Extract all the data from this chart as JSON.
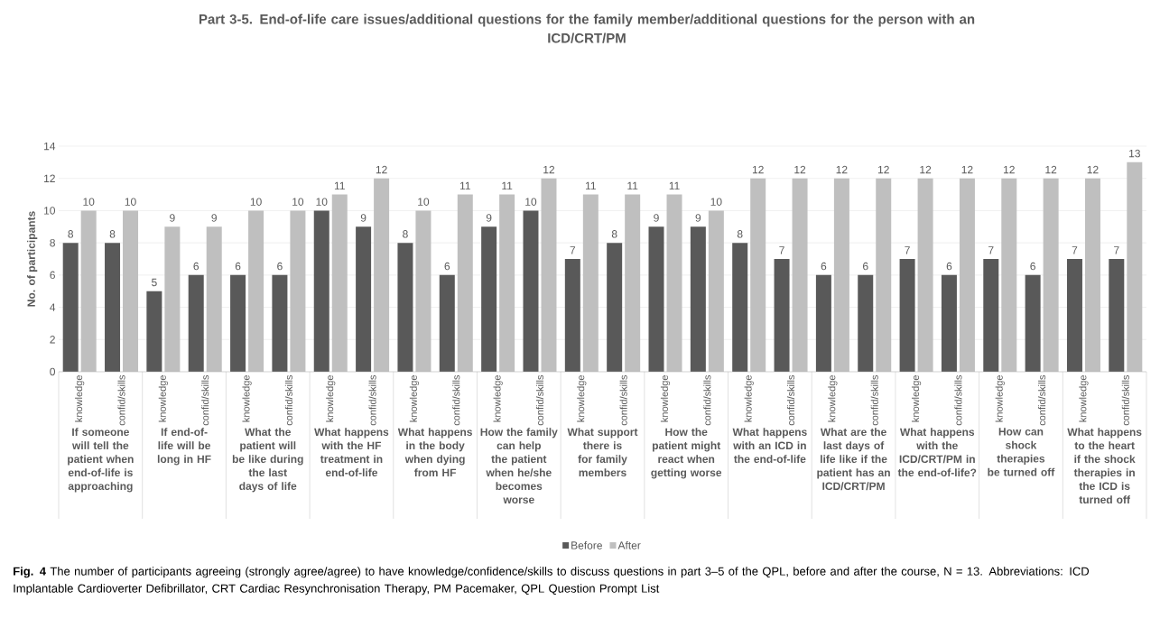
{
  "chart_data": {
    "type": "bar",
    "title": "Part 3-5. End-of-life care issues/additional questions for the family member/additional questions for the person with an ICD/CRT/PM",
    "ylabel": "No. of participants",
    "categories": [
      "knowledge",
      "confid/skills",
      "knowledge",
      "confid/skills",
      "knowledge",
      "confid/skills",
      "knowledge",
      "confid/skills",
      "knowledge",
      "confid/skills",
      "knowledge",
      "confid/skills",
      "knowledge",
      "confid/skills",
      "knowledge",
      "confid/skills",
      "knowledge",
      "confid/skills",
      "knowledge",
      "confid/skills",
      "knowledge",
      "confid/skills",
      "knowledge",
      "confid/skills",
      "knowledge",
      "confid/skills"
    ],
    "series": [
      {
        "name": "Before",
        "color": "#595959",
        "values": [
          8,
          8,
          5,
          6,
          6,
          6,
          10,
          9,
          8,
          6,
          9,
          10,
          7,
          8,
          9,
          9,
          8,
          7,
          6,
          6,
          7,
          6,
          7,
          6,
          7,
          7
        ]
      },
      {
        "name": "After",
        "color": "#bfbfbf",
        "values": [
          10,
          10,
          9,
          9,
          10,
          10,
          11,
          12,
          10,
          11,
          11,
          12,
          11,
          11,
          11,
          10,
          12,
          12,
          12,
          12,
          12,
          12,
          12,
          12,
          12,
          13
        ]
      }
    ],
    "ylim": [
      0,
      14
    ],
    "yticks": [
      0,
      2,
      4,
      6,
      8,
      10,
      12,
      14
    ],
    "grid": "y",
    "legend": "bottom",
    "data_labels": true,
    "annotations": [
      "If someone will tell the patient when end-of-life is approaching",
      "If end-of-life will be long in HF",
      "What the patient will be like during the last days of life",
      "What happens with the HF treatment in end-of-life",
      "What happens in the body when dying from HF",
      "How the family can help the patient when he/she becomes worse",
      "What support there is for family members",
      "How the patient might react when getting worse",
      "What happens with an ICD in the end-of-life",
      "What are the last days of life like if the patient has an ICD/CRT/PM",
      "What happens with the ICD/CRT/PM in the end-of-life?",
      "How can shock therapies be turned off",
      "What happens to the heart if the shock therapies in the ICD is turned off",
      "**Fig. 4** The number of participants agreeing (strongly agree/agree) to have knowledge/confidence/skills to discuss questions in part 3–5 of the QPL, before and after the course, N = 13. Abbreviations: ICD Implantable Cardioverter Defibrillator, CRT Cardiac Resynchronisation Therapy, PM Pacemaker, QPL Question Prompt List"
    ]
  }
}
